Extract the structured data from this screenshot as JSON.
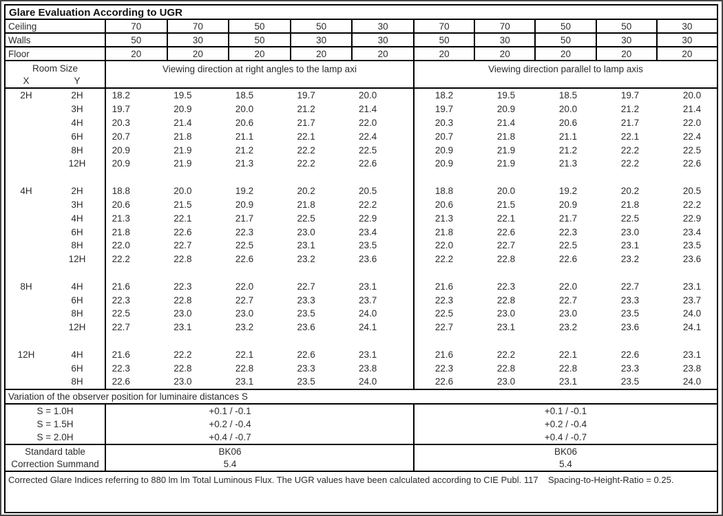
{
  "title": "Glare Evaluation According to UGR",
  "colors": {
    "table_border": "#000000",
    "text": "#2b2b2b",
    "frame": "#454545"
  },
  "surface_rows": [
    {
      "label": "Ceiling",
      "values": [
        "70",
        "70",
        "50",
        "50",
        "30",
        "70",
        "70",
        "50",
        "50",
        "30"
      ]
    },
    {
      "label": "Walls",
      "values": [
        "50",
        "30",
        "50",
        "30",
        "30",
        "50",
        "30",
        "50",
        "30",
        "30"
      ]
    },
    {
      "label": "Floor",
      "values": [
        "20",
        "20",
        "20",
        "20",
        "20",
        "20",
        "20",
        "20",
        "20",
        "20"
      ]
    }
  ],
  "header": {
    "room_size": "Room Size",
    "x_label": "X",
    "y_label": "Y",
    "left_section": "Viewing direction at right angles to the lamp axi",
    "right_section": "Viewing direction parallel to lamp axis"
  },
  "blocks": [
    {
      "x": "2H",
      "rows": [
        {
          "y": "2H",
          "left": [
            "18.2",
            "19.5",
            "18.5",
            "19.7",
            "20.0"
          ],
          "right": [
            "18.2",
            "19.5",
            "18.5",
            "19.7",
            "20.0"
          ]
        },
        {
          "y": "3H",
          "left": [
            "19.7",
            "20.9",
            "20.0",
            "21.2",
            "21.4"
          ],
          "right": [
            "19.7",
            "20.9",
            "20.0",
            "21.2",
            "21.4"
          ]
        },
        {
          "y": "4H",
          "left": [
            "20.3",
            "21.4",
            "20.6",
            "21.7",
            "22.0"
          ],
          "right": [
            "20.3",
            "21.4",
            "20.6",
            "21.7",
            "22.0"
          ]
        },
        {
          "y": "6H",
          "left": [
            "20.7",
            "21.8",
            "21.1",
            "22.1",
            "22.4"
          ],
          "right": [
            "20.7",
            "21.8",
            "21.1",
            "22.1",
            "22.4"
          ]
        },
        {
          "y": "8H",
          "left": [
            "20.9",
            "21.9",
            "21.2",
            "22.2",
            "22.5"
          ],
          "right": [
            "20.9",
            "21.9",
            "21.2",
            "22.2",
            "22.5"
          ]
        },
        {
          "y": "12H",
          "left": [
            "20.9",
            "21.9",
            "21.3",
            "22.2",
            "22.6"
          ],
          "right": [
            "20.9",
            "21.9",
            "21.3",
            "22.2",
            "22.6"
          ]
        }
      ]
    },
    {
      "x": "4H",
      "rows": [
        {
          "y": "2H",
          "left": [
            "18.8",
            "20.0",
            "19.2",
            "20.2",
            "20.5"
          ],
          "right": [
            "18.8",
            "20.0",
            "19.2",
            "20.2",
            "20.5"
          ]
        },
        {
          "y": "3H",
          "left": [
            "20.6",
            "21.5",
            "20.9",
            "21.8",
            "22.2"
          ],
          "right": [
            "20.6",
            "21.5",
            "20.9",
            "21.8",
            "22.2"
          ]
        },
        {
          "y": "4H",
          "left": [
            "21.3",
            "22.1",
            "21.7",
            "22.5",
            "22.9"
          ],
          "right": [
            "21.3",
            "22.1",
            "21.7",
            "22.5",
            "22.9"
          ]
        },
        {
          "y": "6H",
          "left": [
            "21.8",
            "22.6",
            "22.3",
            "23.0",
            "23.4"
          ],
          "right": [
            "21.8",
            "22.6",
            "22.3",
            "23.0",
            "23.4"
          ]
        },
        {
          "y": "8H",
          "left": [
            "22.0",
            "22.7",
            "22.5",
            "23.1",
            "23.5"
          ],
          "right": [
            "22.0",
            "22.7",
            "22.5",
            "23.1",
            "23.5"
          ]
        },
        {
          "y": "12H",
          "left": [
            "22.2",
            "22.8",
            "22.6",
            "23.2",
            "23.6"
          ],
          "right": [
            "22.2",
            "22.8",
            "22.6",
            "23.2",
            "23.6"
          ]
        }
      ]
    },
    {
      "x": "8H",
      "rows": [
        {
          "y": "4H",
          "left": [
            "21.6",
            "22.3",
            "22.0",
            "22.7",
            "23.1"
          ],
          "right": [
            "21.6",
            "22.3",
            "22.0",
            "22.7",
            "23.1"
          ]
        },
        {
          "y": "6H",
          "left": [
            "22.3",
            "22.8",
            "22.7",
            "23.3",
            "23.7"
          ],
          "right": [
            "22.3",
            "22.8",
            "22.7",
            "23.3",
            "23.7"
          ]
        },
        {
          "y": "8H",
          "left": [
            "22.5",
            "23.0",
            "23.0",
            "23.5",
            "24.0"
          ],
          "right": [
            "22.5",
            "23.0",
            "23.0",
            "23.5",
            "24.0"
          ]
        },
        {
          "y": "12H",
          "left": [
            "22.7",
            "23.1",
            "23.2",
            "23.6",
            "24.1"
          ],
          "right": [
            "22.7",
            "23.1",
            "23.2",
            "23.6",
            "24.1"
          ]
        }
      ]
    },
    {
      "x": "12H",
      "rows": [
        {
          "y": "4H",
          "left": [
            "21.6",
            "22.2",
            "22.1",
            "22.6",
            "23.1"
          ],
          "right": [
            "21.6",
            "22.2",
            "22.1",
            "22.6",
            "23.1"
          ]
        },
        {
          "y": "6H",
          "left": [
            "22.3",
            "22.8",
            "22.8",
            "23.3",
            "23.8"
          ],
          "right": [
            "22.3",
            "22.8",
            "22.8",
            "23.3",
            "23.8"
          ]
        },
        {
          "y": "8H",
          "left": [
            "22.6",
            "23.0",
            "23.1",
            "23.5",
            "24.0"
          ],
          "right": [
            "22.6",
            "23.0",
            "23.1",
            "23.5",
            "24.0"
          ]
        }
      ]
    }
  ],
  "variation": {
    "title": "Variation of the observer position for luminaire distances S",
    "rows": [
      {
        "label": "S = 1.0H",
        "left": "+0.1 / -0.1",
        "right": "+0.1 / -0.1"
      },
      {
        "label": "S = 1.5H",
        "left": "+0.2 / -0.4",
        "right": "+0.2 / -0.4"
      },
      {
        "label": "S = 2.0H",
        "left": "+0.4 / -0.7",
        "right": "+0.4 / -0.7"
      }
    ]
  },
  "summary": {
    "rows": [
      {
        "label": "Standard table",
        "left": "BK06",
        "right": "BK06"
      },
      {
        "label": "Correction Summand",
        "left": "5.4",
        "right": "5.4"
      }
    ]
  },
  "footer": {
    "text": "Corrected Glare Indices referring to 880 lm lm Total Luminous Flux. The UGR values have been calculated according to CIE Publ. 117    Spacing-to-Height-Ratio = 0.25."
  }
}
